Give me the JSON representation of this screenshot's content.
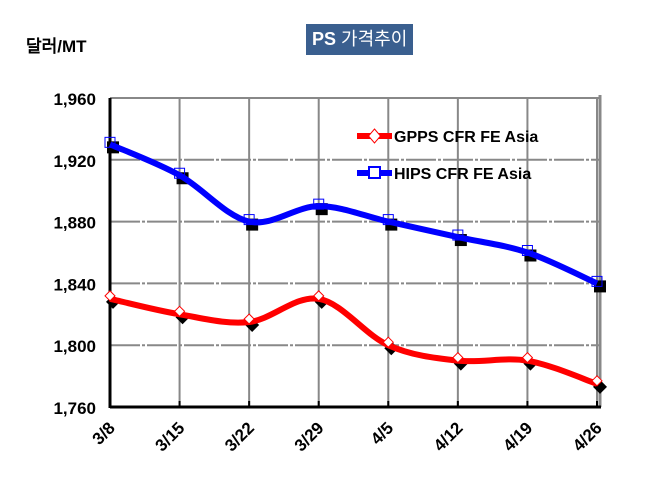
{
  "chart_data": {
    "type": "line",
    "title_prefix": "PS",
    "title_rest": "가격추이",
    "ylabel": "달러/MT",
    "xlabel": "",
    "categories": [
      "3/8",
      "3/15",
      "3/22",
      "3/29",
      "4/5",
      "4/12",
      "4/19",
      "4/26"
    ],
    "ylim": [
      1760,
      1960
    ],
    "yticks": [
      "1,760",
      "1,800",
      "1,840",
      "1,880",
      "1,920",
      "1,960"
    ],
    "ytick_values": [
      1760,
      1800,
      1840,
      1880,
      1920,
      1960
    ],
    "grid": true,
    "legend_position": "top-right",
    "series": [
      {
        "name": "GPPS CFR FE Asia",
        "color": "#ff0000",
        "marker": "diamond",
        "values": [
          1830,
          1820,
          1815,
          1830,
          1800,
          1790,
          1790,
          1775
        ]
      },
      {
        "name": "HIPS CFR FE Asia",
        "color": "#0000ff",
        "marker": "square",
        "values": [
          1930,
          1910,
          1880,
          1890,
          1880,
          1870,
          1860,
          1840
        ]
      }
    ]
  }
}
